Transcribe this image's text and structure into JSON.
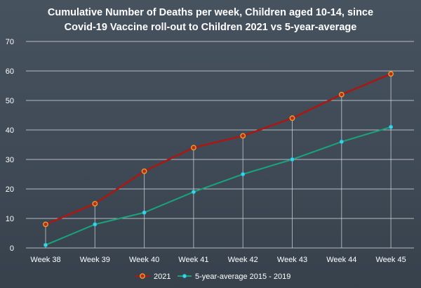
{
  "chart_data": {
    "type": "line",
    "title_line1": "Cumulative Number of Deaths per week, Children aged 10-14, since",
    "title_line2": "Covid-19 Vaccine roll-out to Children 2021 vs 5-year-average",
    "categories": [
      "Week 38",
      "Week 39",
      "Week 40",
      "Week 41",
      "Week 42",
      "Week 43",
      "Week 44",
      "Week 45"
    ],
    "ylim": [
      0,
      70
    ],
    "yticks": [
      0,
      10,
      20,
      30,
      40,
      50,
      60,
      70
    ],
    "grid": true,
    "legend_position": "bottom",
    "series": [
      {
        "name": "2021",
        "values": [
          8,
          15,
          26,
          34,
          38,
          44,
          52,
          59
        ],
        "color": "#a51a15",
        "marker": "circle-orange"
      },
      {
        "name": "5-year-average 2015 - 2019",
        "values": [
          1,
          8,
          12,
          19,
          25,
          30,
          36,
          41
        ],
        "color": "#1aa37a",
        "marker": "dot-cyan"
      }
    ]
  }
}
